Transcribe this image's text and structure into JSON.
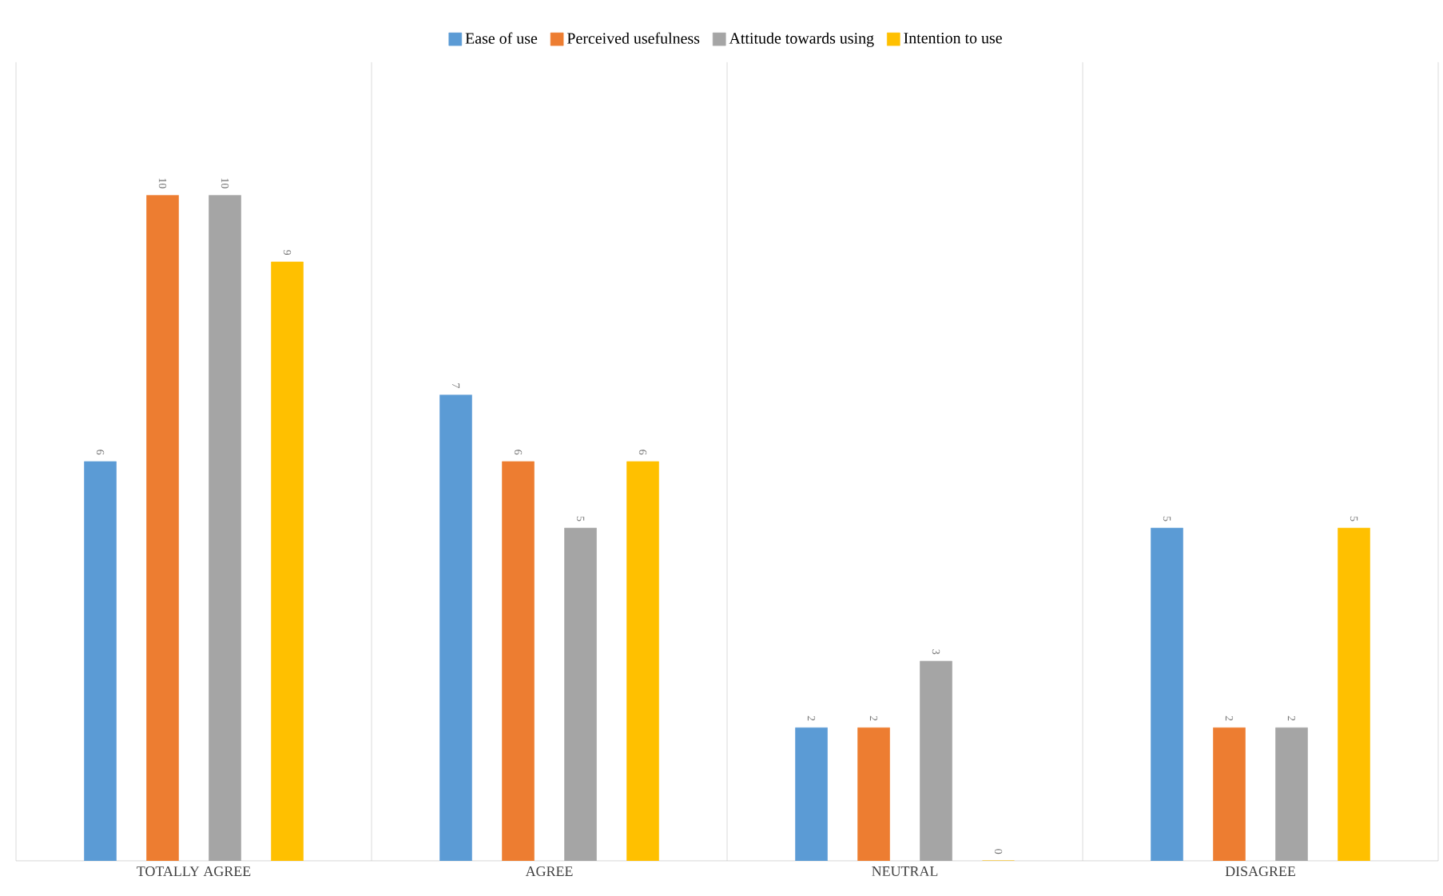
{
  "chart_data": {
    "type": "bar",
    "data_labels": true,
    "legend": "top",
    "grid": "x",
    "categories": [
      "TOTALLY AGREE",
      "AGREE",
      "NEUTRAL",
      "DISAGREE"
    ],
    "series": [
      {
        "name": "Ease of use",
        "color": "#5b9bd5",
        "values": [
          6,
          7,
          2,
          5
        ]
      },
      {
        "name": "Perceived usefulness",
        "color": "#ed7d31",
        "values": [
          10,
          6,
          2,
          2
        ]
      },
      {
        "name": "Attitude towards using",
        "color": "#a5a5a5",
        "values": [
          10,
          5,
          3,
          2
        ]
      },
      {
        "name": "Intention to use",
        "color": "#ffc000",
        "values": [
          9,
          6,
          0,
          5
        ]
      }
    ]
  }
}
